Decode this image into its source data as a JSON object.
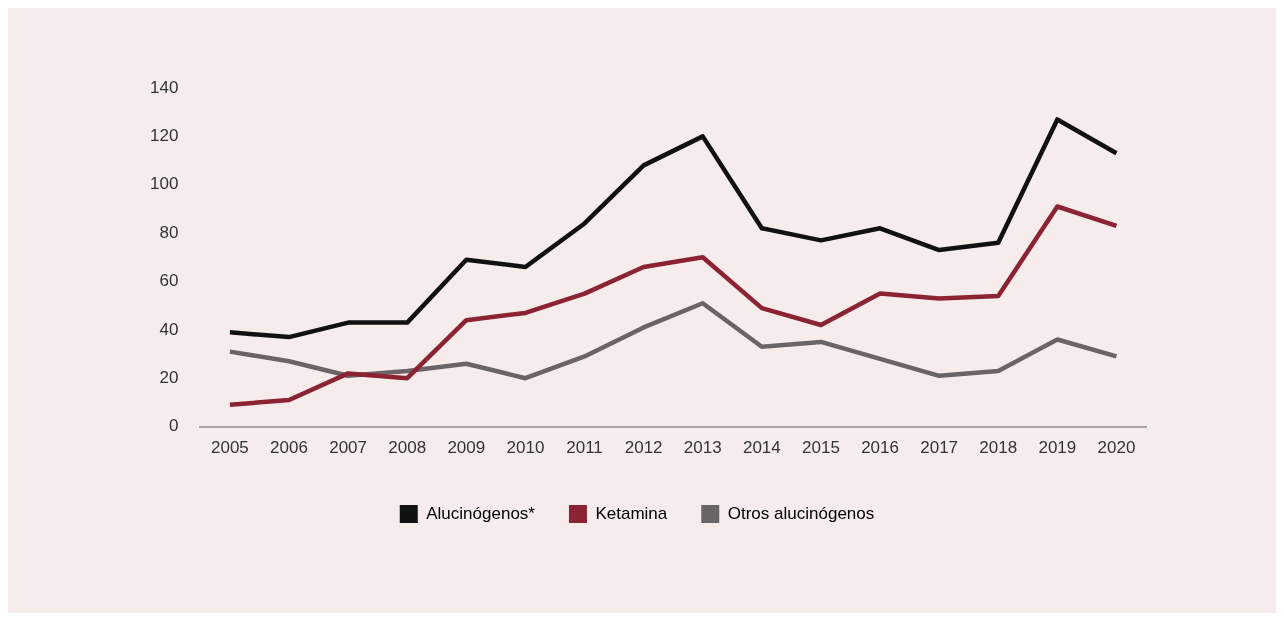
{
  "chart_data": {
    "type": "line",
    "categories": [
      "2005",
      "2006",
      "2007",
      "2008",
      "2009",
      "2010",
      "2011",
      "2012",
      "2013",
      "2014",
      "2015",
      "2016",
      "2017",
      "2018",
      "2019",
      "2020"
    ],
    "series": [
      {
        "name": "Alucinógenos*",
        "color": "#111111",
        "values": [
          39,
          37,
          43,
          43,
          69,
          66,
          84,
          108,
          120,
          82,
          77,
          82,
          73,
          76,
          127,
          113
        ]
      },
      {
        "name": "Ketamina",
        "color": "#8b2332",
        "values": [
          9,
          11,
          22,
          20,
          44,
          47,
          55,
          66,
          70,
          49,
          42,
          55,
          53,
          54,
          91,
          83
        ]
      },
      {
        "name": "Otros alucinógenos",
        "color": "#6a6466",
        "values": [
          31,
          27,
          21,
          23,
          26,
          20,
          29,
          41,
          51,
          33,
          35,
          28,
          21,
          23,
          36,
          29
        ]
      }
    ],
    "ylim": [
      0,
      140
    ],
    "yticks": [
      0,
      20,
      40,
      60,
      80,
      100,
      120,
      140
    ],
    "grid": false,
    "legend": "bottom",
    "marker": "none",
    "line_style": "solid"
  }
}
